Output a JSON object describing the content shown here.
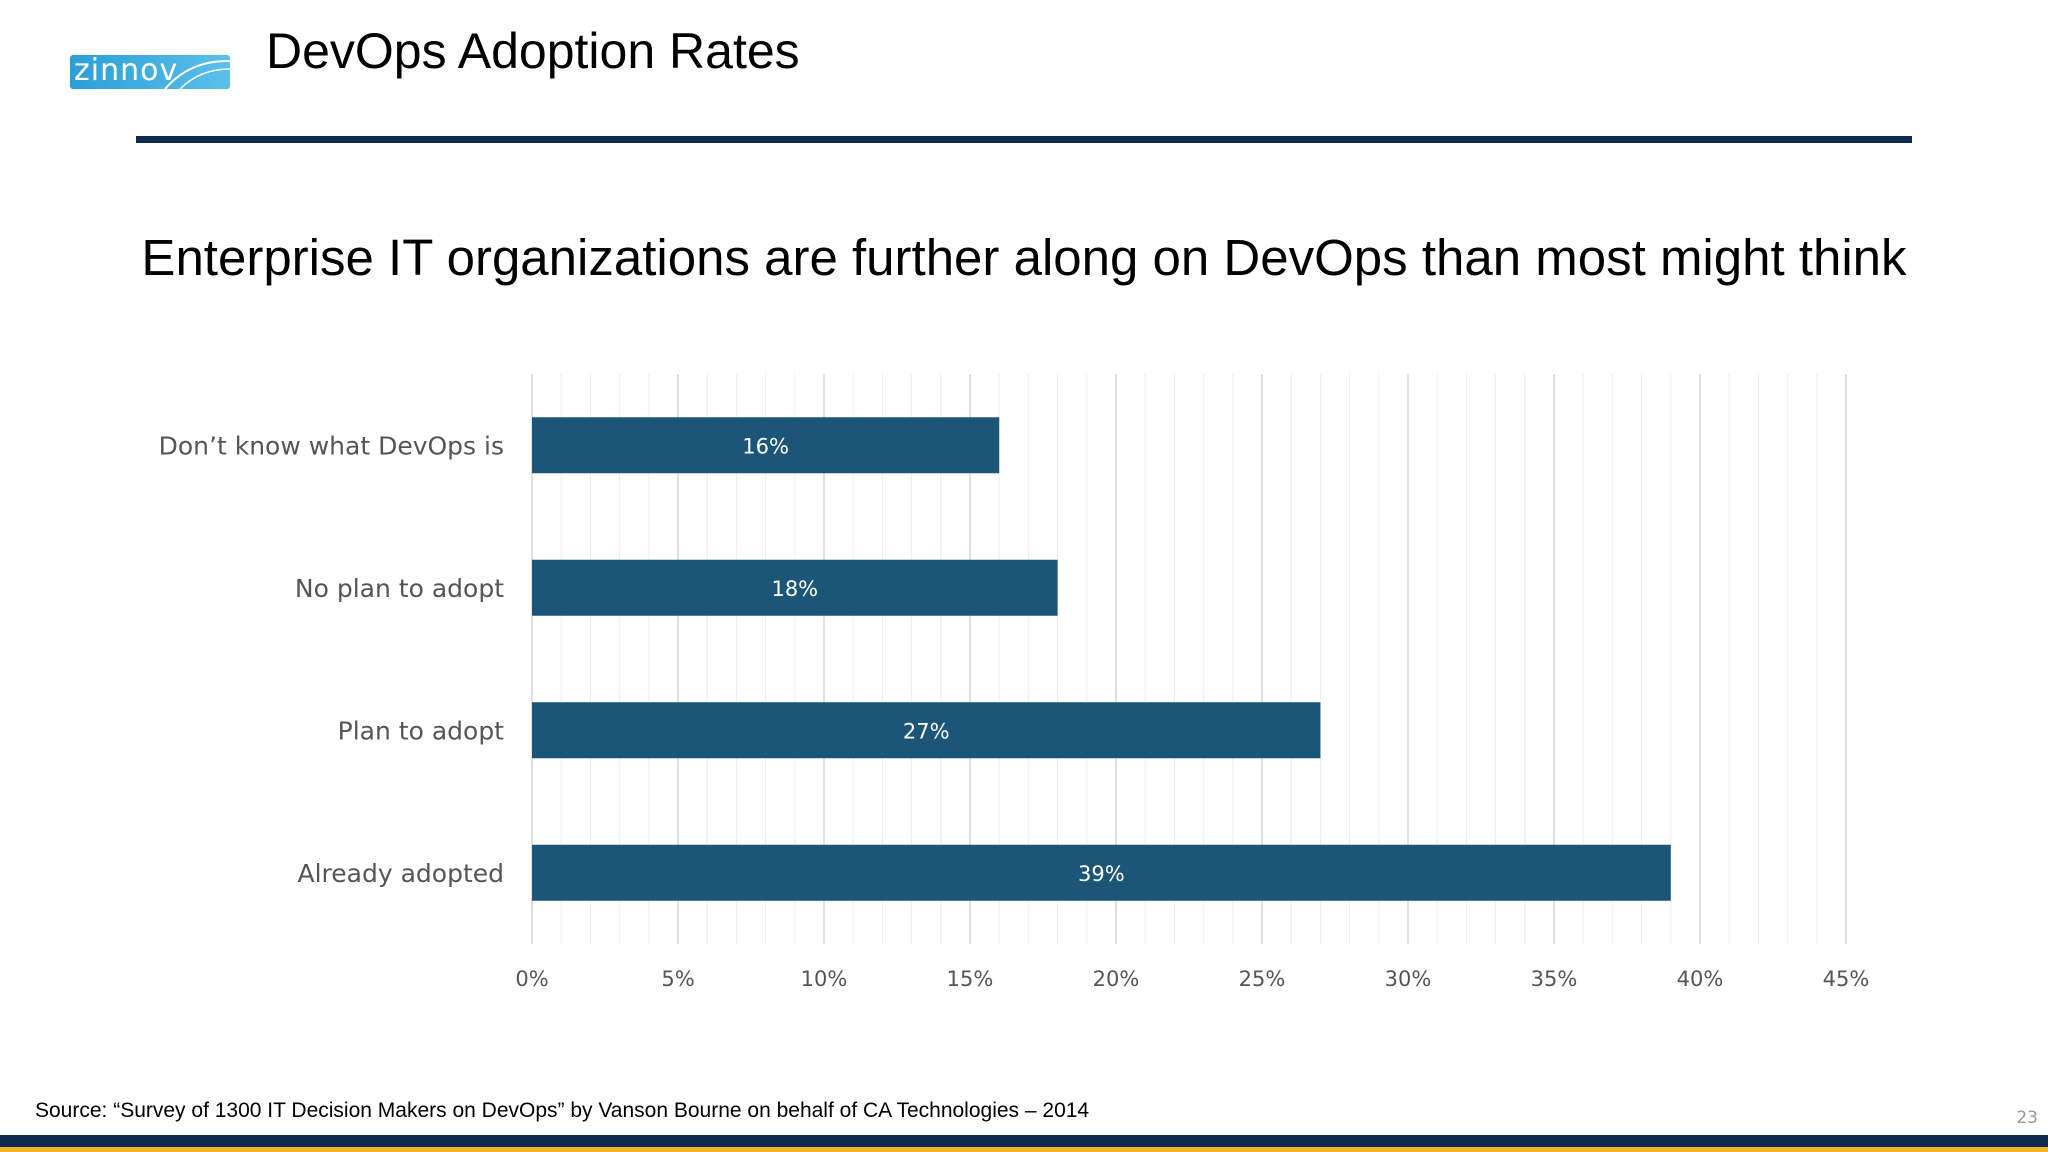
{
  "logo": {
    "text": "zinnov"
  },
  "header": {
    "title": "DevOps Adoption Rates"
  },
  "headline": "Enterprise IT organizations are further along on DevOps than most might think",
  "footer": {
    "source": "Source: “Survey of 1300 IT Decision Makers on DevOps” by Vanson Bourne on behalf of CA Technologies – 2014",
    "page_number": "23"
  },
  "colors": {
    "bar": "#1b5679",
    "rule": "#0e2b4f",
    "accent": "#f0b323"
  },
  "chart_data": {
    "type": "bar",
    "orientation": "horizontal",
    "categories": [
      "Don’t know what DevOps is",
      "No plan to adopt",
      "Plan to adopt",
      "Already adopted"
    ],
    "values": [
      16,
      18,
      27,
      39
    ],
    "data_labels": [
      "16%",
      "18%",
      "27%",
      "39%"
    ],
    "xlim": [
      0,
      45
    ],
    "ticks": [
      0,
      5,
      10,
      15,
      20,
      25,
      30,
      35,
      40,
      45
    ],
    "tick_labels": [
      "0%",
      "5%",
      "10%",
      "15%",
      "20%",
      "25%",
      "30%",
      "35%",
      "40%",
      "45%"
    ],
    "grid": true,
    "legend": "none"
  }
}
